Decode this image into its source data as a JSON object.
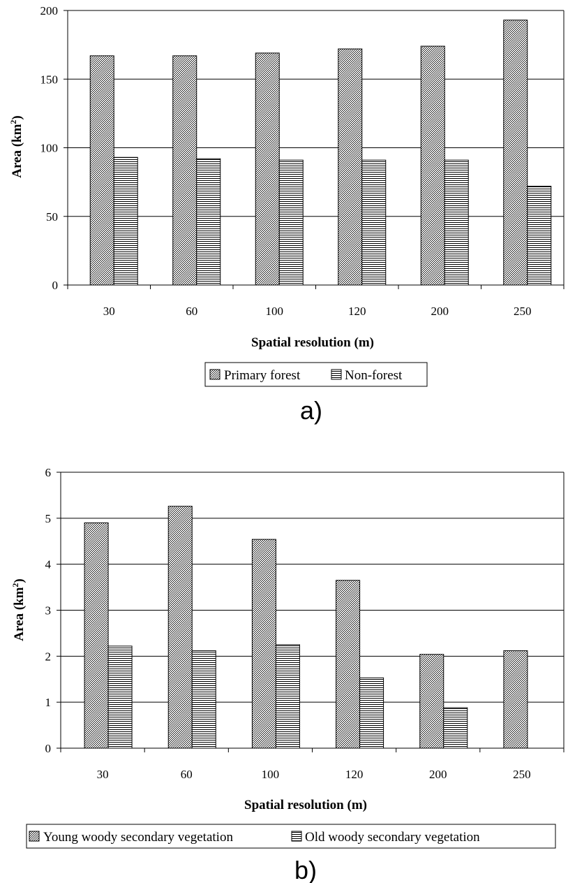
{
  "chart_data": [
    {
      "type": "bar",
      "panel_label": "a)",
      "xlabel": "Spatial resolution (m)",
      "ylabel_main": "Area (km",
      "ylabel_sup": "2",
      "ylabel_close": ")",
      "categories": [
        "30",
        "60",
        "100",
        "120",
        "200",
        "250"
      ],
      "ylim": [
        0,
        200
      ],
      "yticks": [
        "0",
        "50",
        "100",
        "150",
        "200"
      ],
      "grid": true,
      "legend_position": "bottom",
      "series": [
        {
          "name": "Primary forest",
          "values": [
            167,
            167,
            169,
            172,
            174,
            193
          ],
          "pattern": "crosshatch"
        },
        {
          "name": "Non-forest",
          "values": [
            93,
            92,
            91,
            91,
            91,
            72
          ],
          "pattern": "horizontal"
        }
      ]
    },
    {
      "type": "bar",
      "panel_label": "b)",
      "xlabel": "Spatial resolution (m)",
      "ylabel_main": "Area (km",
      "ylabel_sup": "2",
      "ylabel_close": ")",
      "categories": [
        "30",
        "60",
        "100",
        "120",
        "200",
        "250"
      ],
      "ylim": [
        0,
        6
      ],
      "yticks": [
        "0",
        "1",
        "2",
        "3",
        "4",
        "5",
        "6"
      ],
      "grid": true,
      "legend_position": "bottom",
      "series": [
        {
          "name": "Young woody secondary vegetation",
          "values": [
            4.9,
            5.26,
            4.54,
            3.65,
            2.04,
            2.12
          ],
          "pattern": "crosshatch"
        },
        {
          "name": "Old woody secondary vegetation",
          "values": [
            2.22,
            2.12,
            2.25,
            1.53,
            0.88,
            0
          ],
          "pattern": "horizontal"
        }
      ]
    }
  ]
}
